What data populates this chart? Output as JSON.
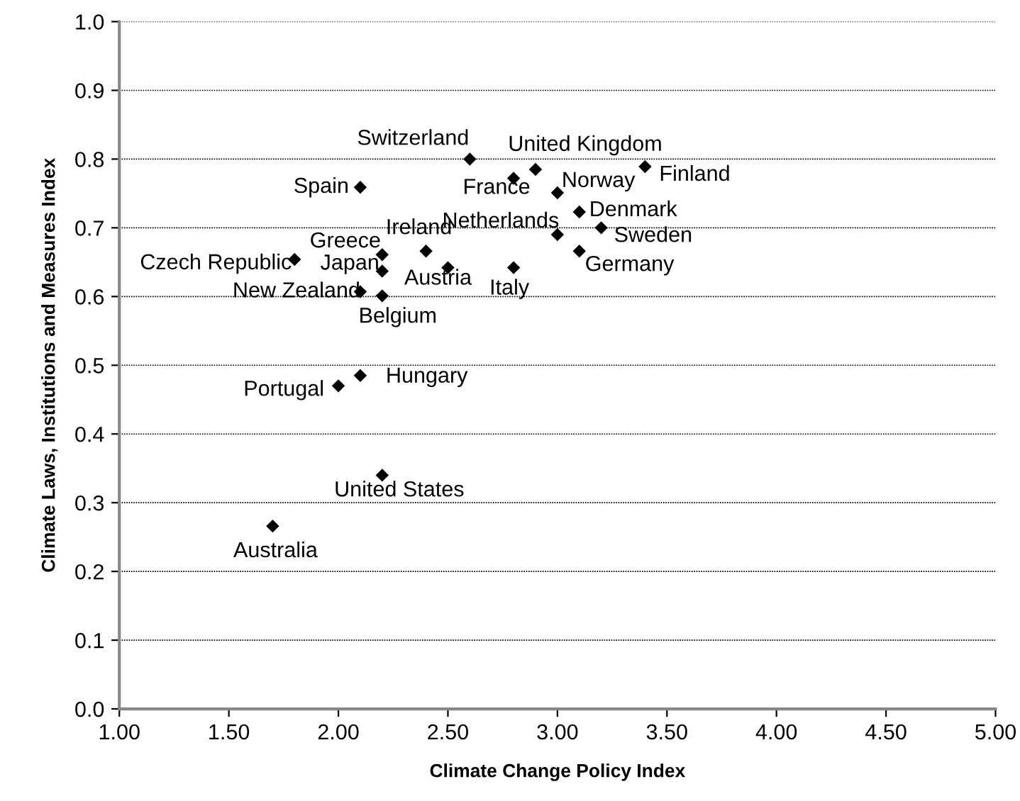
{
  "chart_data": {
    "type": "scatter",
    "xlabel": "Climate Change Policy Index",
    "ylabel": "Climate Laws, Institutions and Measures Index",
    "x": [
      2.6,
      2.9,
      2.8,
      3.0,
      3.4,
      2.1,
      3.1,
      3.2,
      3.0,
      3.1,
      2.2,
      2.4,
      1.8,
      2.2,
      2.5,
      2.8,
      2.1,
      2.2,
      2.0,
      2.1,
      2.2,
      1.7
    ],
    "values": [
      0.8,
      0.785,
      0.772,
      0.751,
      0.789,
      0.759,
      0.723,
      0.7,
      0.69,
      0.666,
      0.661,
      0.666,
      0.654,
      0.637,
      0.642,
      0.642,
      0.607,
      0.601,
      0.47,
      0.485,
      0.34,
      0.266
    ],
    "color": "#000000",
    "marker": "diamond",
    "grid": "y",
    "xlim": [
      1.0,
      5.0
    ],
    "xticks": [
      {
        "value": 1.0,
        "label": "1.00"
      },
      {
        "value": 1.5,
        "label": "1.50"
      },
      {
        "value": 2.0,
        "label": "2.00"
      },
      {
        "value": 2.5,
        "label": "2.50"
      },
      {
        "value": 3.0,
        "label": "3.00"
      },
      {
        "value": 3.5,
        "label": "3.50"
      },
      {
        "value": 4.0,
        "label": "4.00"
      },
      {
        "value": 4.5,
        "label": "4.50"
      },
      {
        "value": 5.0,
        "label": "5.00"
      }
    ],
    "ylim": [
      0.0,
      1.0
    ],
    "yticks": [
      {
        "value": 0.0,
        "label": "0.0"
      },
      {
        "value": 0.1,
        "label": "0.1"
      },
      {
        "value": 0.2,
        "label": "0.2"
      },
      {
        "value": 0.3,
        "label": "0.3"
      },
      {
        "value": 0.4,
        "label": "0.4"
      },
      {
        "value": 0.5,
        "label": "0.5"
      },
      {
        "value": 0.6,
        "label": "0.6"
      },
      {
        "value": 0.7,
        "label": "0.7"
      },
      {
        "value": 0.8,
        "label": "0.8"
      },
      {
        "value": 0.9,
        "label": "0.9"
      },
      {
        "value": 1.0,
        "label": "1.0"
      }
    ],
    "annotations": [
      {
        "text": "Switzerland",
        "x": 2.6,
        "y": 0.8
      },
      {
        "text": "United Kingdom",
        "x": 2.9,
        "y": 0.785
      },
      {
        "text": "France",
        "x": 2.8,
        "y": 0.772
      },
      {
        "text": "Norway",
        "x": 3.0,
        "y": 0.751
      },
      {
        "text": "Finland",
        "x": 3.4,
        "y": 0.789
      },
      {
        "text": "Spain",
        "x": 2.1,
        "y": 0.759
      },
      {
        "text": "Denmark",
        "x": 3.1,
        "y": 0.723
      },
      {
        "text": "Sweden",
        "x": 3.2,
        "y": 0.7
      },
      {
        "text": "Netherlands",
        "x": 3.0,
        "y": 0.69
      },
      {
        "text": "Germany",
        "x": 3.1,
        "y": 0.666
      },
      {
        "text": "Greece",
        "x": 2.2,
        "y": 0.661
      },
      {
        "text": "Ireland",
        "x": 2.4,
        "y": 0.666
      },
      {
        "text": "Czech Republic",
        "x": 1.8,
        "y": 0.654
      },
      {
        "text": "Japan",
        "x": 2.2,
        "y": 0.637
      },
      {
        "text": "Austria",
        "x": 2.5,
        "y": 0.642
      },
      {
        "text": "Italy",
        "x": 2.8,
        "y": 0.642
      },
      {
        "text": "New Zealand",
        "x": 2.1,
        "y": 0.607
      },
      {
        "text": "Belgium",
        "x": 2.2,
        "y": 0.601
      },
      {
        "text": "Portugal",
        "x": 2.0,
        "y": 0.47
      },
      {
        "text": "Hungary",
        "x": 2.1,
        "y": 0.485
      },
      {
        "text": "United States",
        "x": 2.2,
        "y": 0.34
      },
      {
        "text": "Australia",
        "x": 1.7,
        "y": 0.266
      }
    ]
  }
}
